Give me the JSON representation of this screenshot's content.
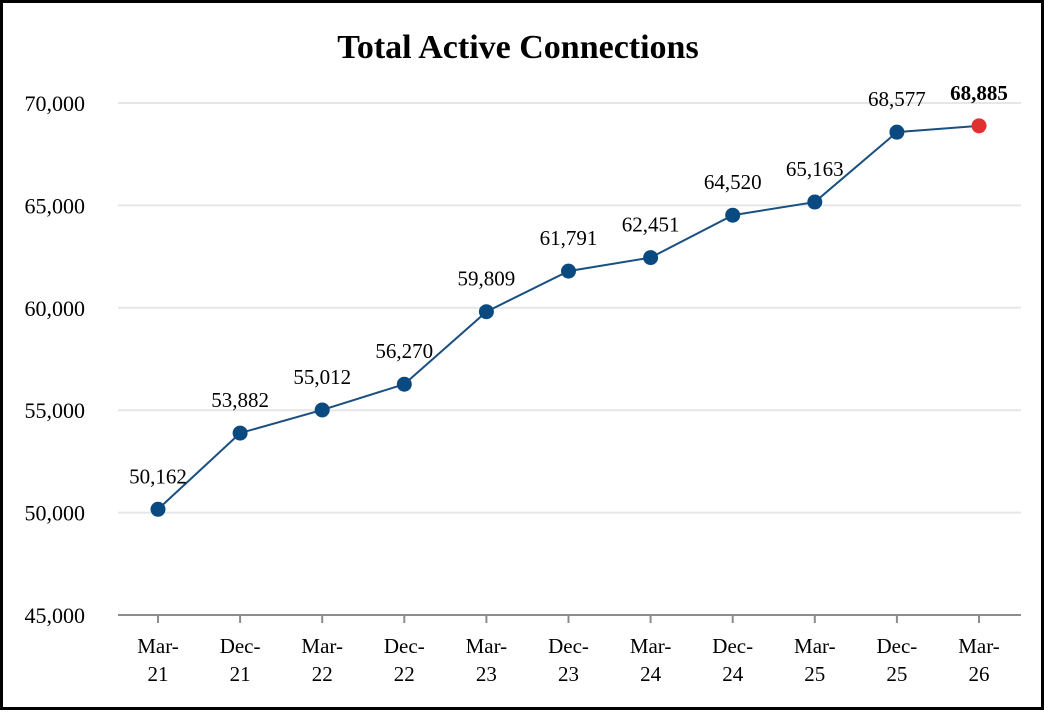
{
  "chart_data": {
    "type": "line",
    "title": "Total Active Connections",
    "xlabel": "",
    "ylabel": "",
    "categories": [
      "Mar-21",
      "Dec-21",
      "Mar-22",
      "Dec-22",
      "Mar-23",
      "Dec-23",
      "Mar-24",
      "Dec-24",
      "Mar-25",
      "Dec-25",
      "Mar-26"
    ],
    "category_lines": [
      [
        "Mar-",
        "21"
      ],
      [
        "Dec-",
        "21"
      ],
      [
        "Mar-",
        "22"
      ],
      [
        "Dec-",
        "22"
      ],
      [
        "Mar-",
        "23"
      ],
      [
        "Dec-",
        "23"
      ],
      [
        "Mar-",
        "24"
      ],
      [
        "Dec-",
        "24"
      ],
      [
        "Mar-",
        "25"
      ],
      [
        "Dec-",
        "25"
      ],
      [
        "Mar-",
        "26"
      ]
    ],
    "series": [
      {
        "values": [
          50162,
          53882,
          55012,
          56270,
          59809,
          61791,
          62451,
          64520,
          65163,
          68577,
          68885
        ]
      }
    ],
    "data_labels": [
      "50,162",
      "53,882",
      "55,012",
      "56,270",
      "59,809",
      "61,791",
      "62,451",
      "64,520",
      "65,163",
      "68,577",
      "68,885"
    ],
    "highlight_index": 10,
    "ylim": [
      45000,
      70000
    ],
    "yticks": [
      45000,
      50000,
      55000,
      60000,
      65000,
      70000
    ],
    "ytick_labels": [
      "45,000",
      "50,000",
      "55,000",
      "60,000",
      "65,000",
      "70,000"
    ],
    "grid": true,
    "legend": "none",
    "colors": {
      "line": "#1a4f80",
      "marker": "#0b4a80",
      "highlight": "#e03030",
      "grid": "#e6e6e6",
      "axis": "#8c8c8c"
    }
  }
}
